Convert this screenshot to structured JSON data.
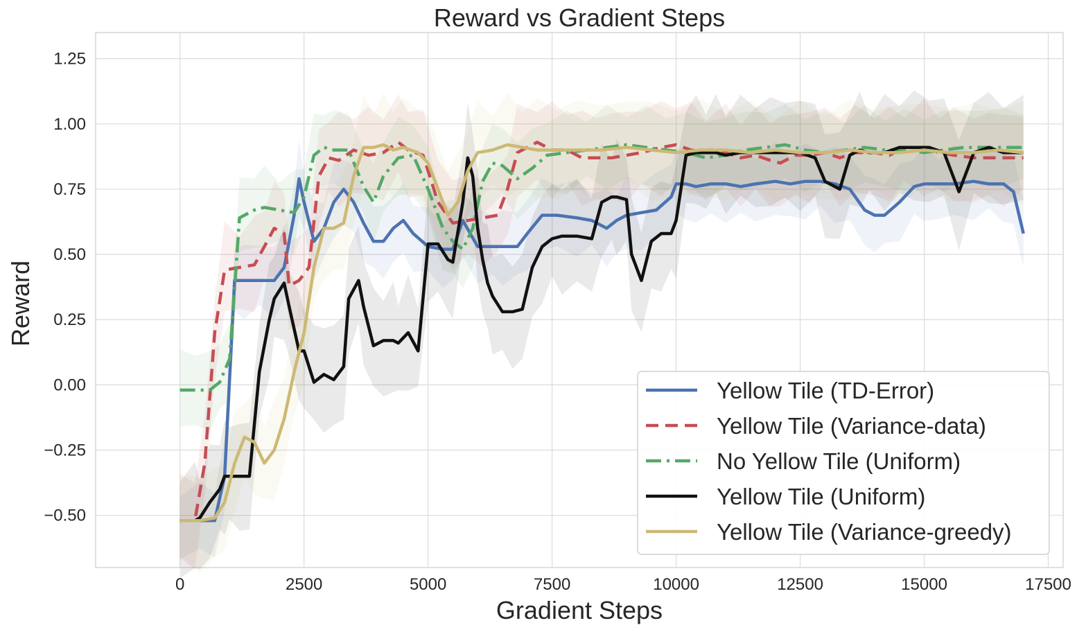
{
  "chart_data": {
    "type": "line",
    "title": "Reward vs Gradient Steps",
    "xlabel": "Gradient Steps",
    "ylabel": "Reward",
    "xlim": [
      -1700,
      17800
    ],
    "ylim": [
      -0.7,
      1.35
    ],
    "xticks": [
      0,
      2500,
      5000,
      7500,
      10000,
      12500,
      15000,
      17500
    ],
    "xtick_labels": [
      "0",
      "2500",
      "5000",
      "7500",
      "10000",
      "12500",
      "15000",
      "17500"
    ],
    "yticks": [
      -0.5,
      -0.25,
      0.0,
      0.25,
      0.5,
      0.75,
      1.0,
      1.25
    ],
    "ytick_labels": [
      "−0.50",
      "−0.25",
      "0.00",
      "0.25",
      "0.50",
      "0.75",
      "1.00",
      "1.25"
    ],
    "grid": true,
    "legend_position": "lower-right",
    "series": [
      {
        "name": "Yellow Tile (TD-Error)",
        "color": "#4C72B0",
        "dash": "solid",
        "band": 0.12,
        "x": [
          0,
          400,
          700,
          900,
          1100,
          1300,
          1600,
          1900,
          2100,
          2300,
          2400,
          2500,
          2700,
          2900,
          3100,
          3300,
          3500,
          3700,
          3900,
          4100,
          4300,
          4500,
          4700,
          5000,
          5300,
          5500,
          5700,
          6000,
          6300,
          6500,
          6800,
          7000,
          7300,
          7600,
          8000,
          8300,
          8600,
          8800,
          9000,
          9300,
          9600,
          9900,
          10000,
          10200,
          10400,
          10700,
          11000,
          11300,
          11600,
          12000,
          12300,
          12600,
          12900,
          13200,
          13500,
          13800,
          14000,
          14200,
          14500,
          14800,
          15000,
          15300,
          15600,
          16000,
          16300,
          16600,
          16800,
          17000
        ],
        "y": [
          -0.52,
          -0.52,
          -0.52,
          -0.35,
          0.4,
          0.4,
          0.4,
          0.4,
          0.45,
          0.65,
          0.79,
          0.7,
          0.55,
          0.6,
          0.7,
          0.75,
          0.7,
          0.62,
          0.55,
          0.55,
          0.6,
          0.63,
          0.58,
          0.53,
          0.52,
          0.52,
          0.63,
          0.53,
          0.53,
          0.53,
          0.53,
          0.58,
          0.65,
          0.65,
          0.64,
          0.63,
          0.6,
          0.63,
          0.65,
          0.66,
          0.67,
          0.72,
          0.77,
          0.77,
          0.76,
          0.77,
          0.77,
          0.76,
          0.77,
          0.78,
          0.77,
          0.78,
          0.78,
          0.77,
          0.75,
          0.67,
          0.65,
          0.65,
          0.7,
          0.76,
          0.77,
          0.77,
          0.77,
          0.78,
          0.77,
          0.77,
          0.74,
          0.58
        ]
      },
      {
        "name": "Yellow Tile (Variance-data)",
        "color": "#C44E52",
        "dash": "dashed",
        "band": 0.15,
        "x": [
          0,
          300,
          500,
          700,
          900,
          1200,
          1500,
          1700,
          1900,
          2100,
          2200,
          2400,
          2600,
          2800,
          3000,
          3200,
          3500,
          3800,
          4100,
          4400,
          4600,
          4900,
          5200,
          5500,
          5800,
          6100,
          6400,
          6600,
          6800,
          7200,
          7500,
          7800,
          8100,
          8400,
          8700,
          9000,
          9300,
          9700,
          10000,
          10300,
          10600,
          11000,
          11300,
          11600,
          11900,
          12100,
          12400,
          12700,
          13000,
          13300,
          13600,
          14000,
          14300,
          14600,
          15000,
          15300,
          15600,
          16000,
          16300,
          16600,
          17000
        ],
        "y": [
          -0.52,
          -0.52,
          -0.3,
          0.2,
          0.44,
          0.45,
          0.46,
          0.53,
          0.6,
          0.58,
          0.38,
          0.4,
          0.45,
          0.8,
          0.87,
          0.86,
          0.9,
          0.88,
          0.89,
          0.93,
          0.9,
          0.88,
          0.7,
          0.62,
          0.63,
          0.64,
          0.65,
          0.75,
          0.89,
          0.93,
          0.9,
          0.9,
          0.87,
          0.87,
          0.87,
          0.88,
          0.89,
          0.91,
          0.92,
          0.9,
          0.89,
          0.89,
          0.87,
          0.88,
          0.86,
          0.85,
          0.88,
          0.88,
          0.89,
          0.87,
          0.89,
          0.89,
          0.88,
          0.91,
          0.91,
          0.89,
          0.88,
          0.87,
          0.87,
          0.87,
          0.87
        ]
      },
      {
        "name": "No Yellow Tile (Uniform)",
        "color": "#55A868",
        "dash": "dashdot",
        "band": 0.13,
        "x": [
          0,
          300,
          600,
          800,
          1000,
          1200,
          1500,
          1700,
          2000,
          2300,
          2500,
          2700,
          2900,
          3100,
          3400,
          3700,
          3900,
          4100,
          4400,
          4700,
          5000,
          5300,
          5500,
          5700,
          5900,
          6100,
          6300,
          6500,
          6800,
          7100,
          7400,
          7800,
          8200,
          8600,
          9000,
          9400,
          9800,
          10200,
          10600,
          11000,
          11400,
          11800,
          12200,
          12600,
          13000,
          13400,
          13800,
          14200,
          14600,
          15000,
          15400,
          15800,
          16200,
          16600,
          17000
        ],
        "y": [
          -0.02,
          -0.02,
          -0.02,
          0.01,
          0.1,
          0.64,
          0.67,
          0.68,
          0.67,
          0.66,
          0.72,
          0.88,
          0.91,
          0.9,
          0.9,
          0.76,
          0.7,
          0.8,
          0.87,
          0.88,
          0.75,
          0.6,
          0.55,
          0.52,
          0.6,
          0.78,
          0.85,
          0.84,
          0.79,
          0.83,
          0.88,
          0.89,
          0.9,
          0.91,
          0.92,
          0.91,
          0.9,
          0.89,
          0.87,
          0.88,
          0.9,
          0.91,
          0.92,
          0.9,
          0.89,
          0.9,
          0.91,
          0.9,
          0.9,
          0.89,
          0.9,
          0.91,
          0.91,
          0.91,
          0.91
        ]
      },
      {
        "name": "Yellow Tile (Uniform)",
        "color": "#111111",
        "dash": "solid",
        "band": 0.18,
        "x": [
          0,
          300,
          400,
          600,
          800,
          900,
          1000,
          1200,
          1400,
          1600,
          1800,
          1900,
          2100,
          2200,
          2400,
          2500,
          2700,
          2900,
          3100,
          3300,
          3400,
          3600,
          3700,
          3900,
          4100,
          4300,
          4400,
          4600,
          4800,
          5000,
          5200,
          5400,
          5500,
          5700,
          5800,
          5900,
          6000,
          6100,
          6200,
          6300,
          6500,
          6700,
          6900,
          7100,
          7300,
          7500,
          7700,
          8000,
          8300,
          8500,
          8700,
          8800,
          9000,
          9100,
          9300,
          9500,
          9700,
          9900,
          10000,
          10200,
          10400,
          10600,
          10800,
          11000,
          11300,
          11600,
          11900,
          12200,
          12500,
          12800,
          13000,
          13300,
          13500,
          13700,
          13900,
          14200,
          14500,
          14800,
          15100,
          15400,
          15700,
          16000,
          16300,
          16600,
          17000
        ],
        "y": [
          -0.52,
          -0.52,
          -0.51,
          -0.45,
          -0.4,
          -0.35,
          -0.35,
          -0.35,
          -0.35,
          0.05,
          0.25,
          0.33,
          0.39,
          0.3,
          0.13,
          0.13,
          0.01,
          0.04,
          0.02,
          0.07,
          0.33,
          0.4,
          0.3,
          0.15,
          0.17,
          0.17,
          0.16,
          0.2,
          0.13,
          0.54,
          0.54,
          0.48,
          0.47,
          0.7,
          0.87,
          0.8,
          0.6,
          0.48,
          0.39,
          0.34,
          0.28,
          0.28,
          0.29,
          0.45,
          0.53,
          0.56,
          0.57,
          0.57,
          0.56,
          0.7,
          0.72,
          0.72,
          0.71,
          0.5,
          0.4,
          0.55,
          0.58,
          0.58,
          0.63,
          0.88,
          0.89,
          0.89,
          0.89,
          0.88,
          0.89,
          0.89,
          0.89,
          0.89,
          0.89,
          0.87,
          0.78,
          0.75,
          0.88,
          0.9,
          0.89,
          0.89,
          0.91,
          0.91,
          0.91,
          0.89,
          0.74,
          0.89,
          0.91,
          0.89,
          0.89
        ]
      },
      {
        "name": "Yellow Tile (Variance-greedy)",
        "color": "#CCB974",
        "dash": "solid",
        "band": 0.16,
        "x": [
          0,
          400,
          700,
          900,
          1100,
          1300,
          1500,
          1700,
          1900,
          2100,
          2300,
          2500,
          2700,
          2900,
          3100,
          3300,
          3500,
          3700,
          3900,
          4100,
          4300,
          4500,
          4800,
          5000,
          5200,
          5400,
          5600,
          5800,
          6000,
          6300,
          6600,
          6900,
          7200,
          7600,
          8000,
          8500,
          9000,
          9500,
          10000,
          10500,
          11000,
          11500,
          12000,
          12500,
          13000,
          13500,
          14000,
          14500,
          15000,
          15500,
          16000,
          16500,
          17000
        ],
        "y": [
          -0.52,
          -0.52,
          -0.51,
          -0.45,
          -0.3,
          -0.2,
          -0.22,
          -0.3,
          -0.25,
          -0.13,
          0.05,
          0.2,
          0.45,
          0.6,
          0.6,
          0.62,
          0.8,
          0.91,
          0.91,
          0.92,
          0.9,
          0.91,
          0.89,
          0.85,
          0.75,
          0.65,
          0.7,
          0.82,
          0.89,
          0.9,
          0.92,
          0.91,
          0.9,
          0.9,
          0.9,
          0.9,
          0.91,
          0.9,
          0.89,
          0.9,
          0.9,
          0.89,
          0.9,
          0.89,
          0.89,
          0.9,
          0.89,
          0.89,
          0.9,
          0.89,
          0.89,
          0.9,
          0.89
        ]
      }
    ]
  }
}
